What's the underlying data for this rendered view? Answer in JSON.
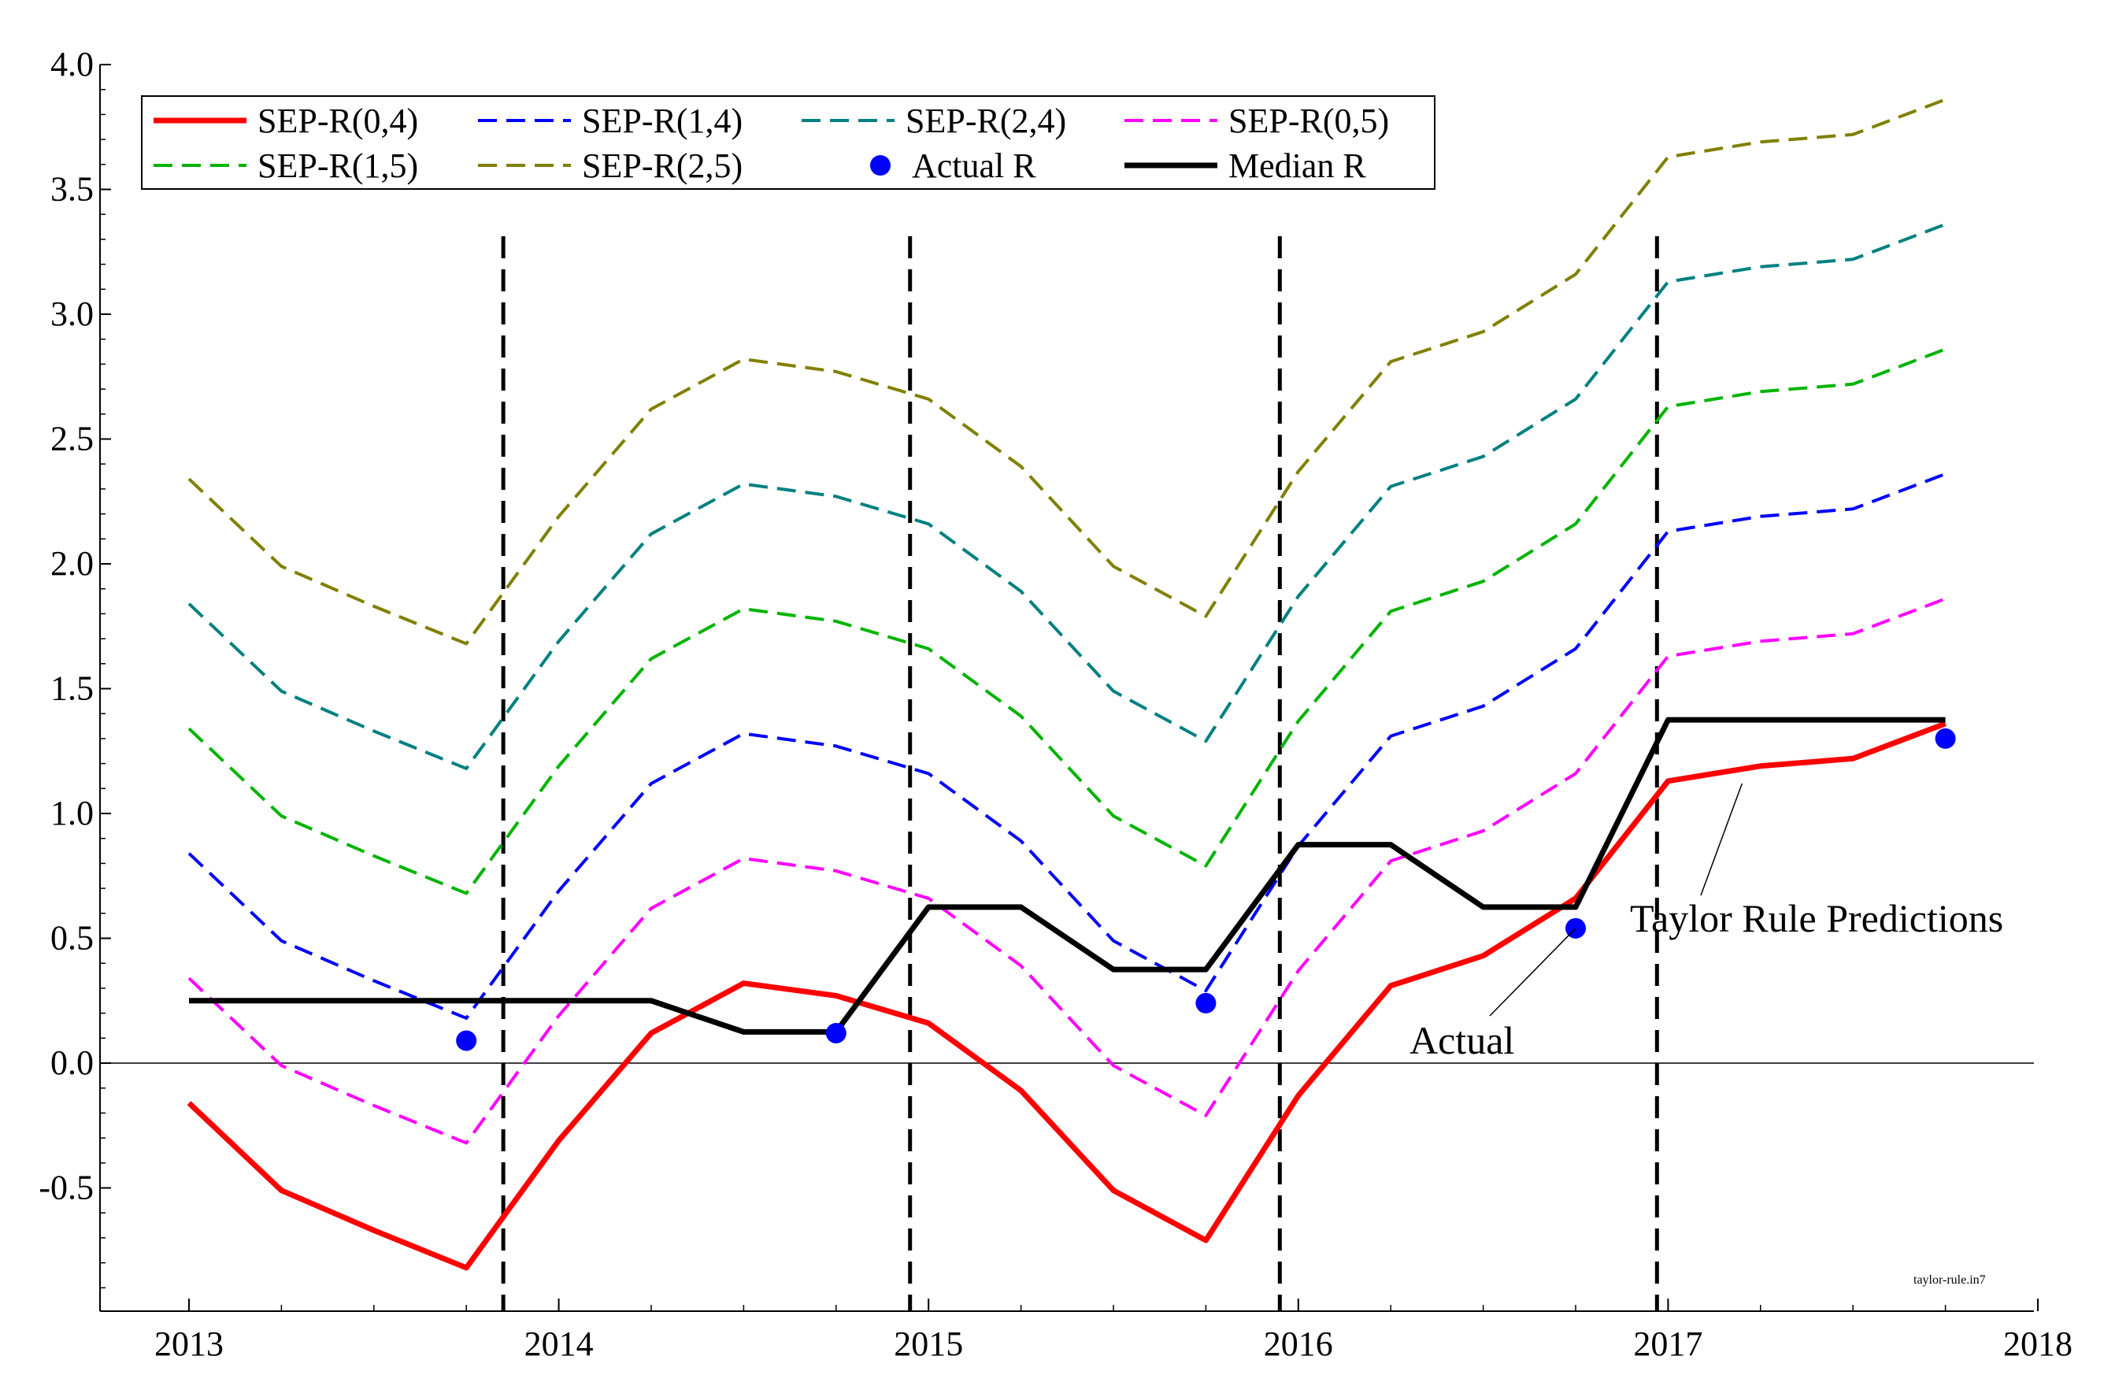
{
  "chart_data": {
    "type": "line",
    "title": "",
    "xlabel": "",
    "ylabel": "",
    "xlim": [
      2013.0,
      2018.0
    ],
    "ylim": [
      -1.0,
      4.0
    ],
    "x_ticks": [
      "2013",
      "2014",
      "2015",
      "2016",
      "2017",
      "2018"
    ],
    "y_ticks": [
      "4.0",
      "3.5",
      "3.0",
      "2.5",
      "2.0",
      "1.5",
      "1.0",
      "0.5",
      "0.0",
      "-0.5"
    ],
    "x": [
      2013.0,
      2013.25,
      2013.5,
      2013.75,
      2014.0,
      2014.25,
      2014.5,
      2014.75,
      2015.0,
      2015.25,
      2015.5,
      2015.75,
      2016.0,
      2016.25,
      2016.5,
      2016.75,
      2017.0,
      2017.25,
      2017.5,
      2017.75
    ],
    "series": [
      {
        "name": "SEP-R(0,4)",
        "color": "#ff0000",
        "style": "solid",
        "values": [
          -0.16,
          -0.51,
          -0.67,
          -0.82,
          -0.31,
          0.12,
          0.32,
          0.27,
          0.16,
          -0.11,
          -0.51,
          -0.71,
          -0.13,
          0.31,
          0.43,
          0.66,
          1.13,
          1.19,
          1.22,
          1.36
        ]
      },
      {
        "name": "SEP-R(1,4)",
        "color": "#0000ff",
        "style": "dashed",
        "values": [
          0.84,
          0.49,
          0.33,
          0.18,
          0.69,
          1.12,
          1.32,
          1.27,
          1.16,
          0.89,
          0.49,
          0.29,
          0.87,
          1.31,
          1.43,
          1.66,
          2.13,
          2.19,
          2.22,
          2.36
        ]
      },
      {
        "name": "SEP-R(2,4)",
        "color": "#008080",
        "style": "dashed",
        "values": [
          1.84,
          1.49,
          1.33,
          1.18,
          1.69,
          2.12,
          2.32,
          2.27,
          2.16,
          1.89,
          1.49,
          1.29,
          1.87,
          2.31,
          2.43,
          2.66,
          3.13,
          3.19,
          3.22,
          3.36
        ]
      },
      {
        "name": "SEP-R(0,5)",
        "color": "#ff00ff",
        "style": "dashed",
        "values": [
          0.34,
          -0.01,
          -0.17,
          -0.32,
          0.19,
          0.62,
          0.82,
          0.77,
          0.66,
          0.39,
          -0.01,
          -0.21,
          0.37,
          0.81,
          0.93,
          1.16,
          1.63,
          1.69,
          1.72,
          1.86
        ]
      },
      {
        "name": "SEP-R(1,5)",
        "color": "#00b400",
        "style": "dashed",
        "values": [
          1.34,
          0.99,
          0.83,
          0.68,
          1.19,
          1.62,
          1.82,
          1.77,
          1.66,
          1.39,
          0.99,
          0.79,
          1.37,
          1.81,
          1.93,
          2.16,
          2.63,
          2.69,
          2.72,
          2.86
        ]
      },
      {
        "name": "SEP-R(2,5)",
        "color": "#808000",
        "style": "dashed",
        "values": [
          2.34,
          1.99,
          1.83,
          1.68,
          2.19,
          2.62,
          2.82,
          2.77,
          2.66,
          2.39,
          1.99,
          1.79,
          2.37,
          2.81,
          2.93,
          3.16,
          3.63,
          3.69,
          3.72,
          3.86
        ]
      },
      {
        "name": "Actual R",
        "color": "#0000ff",
        "style": "markers",
        "points": [
          [
            2013.75,
            0.09
          ],
          [
            2014.75,
            0.12
          ],
          [
            2015.75,
            0.24
          ],
          [
            2016.75,
            0.54
          ],
          [
            2017.75,
            1.3
          ]
        ]
      },
      {
        "name": "Median R",
        "color": "#000000",
        "style": "step",
        "values": [
          0.25,
          0.25,
          0.25,
          0.25,
          0.25,
          0.25,
          0.125,
          0.125,
          0.625,
          0.625,
          0.375,
          0.375,
          0.875,
          0.875,
          0.625,
          0.625,
          1.375,
          1.375,
          1.375,
          1.375
        ]
      }
    ],
    "vertical_dashed_lines": [
      2013.85,
      2014.95,
      2015.95,
      2016.97
    ],
    "zero_line": 0.0,
    "legend_position": "top-left",
    "annotations": [
      {
        "text": "Taylor Rule Predictions",
        "anchor": [
          2017.2,
          1.12
        ]
      },
      {
        "text": "Actual",
        "anchor": [
          2016.75,
          0.54
        ]
      }
    ],
    "footer_label": "taylor-rule.in7"
  }
}
